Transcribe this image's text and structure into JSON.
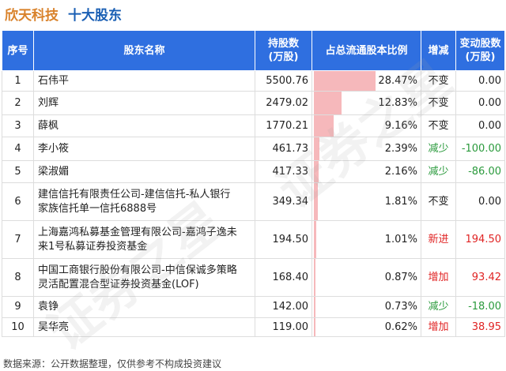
{
  "title": {
    "company": "欣天科技",
    "section": "十大股东"
  },
  "headers": {
    "index": "序号",
    "name": "股东名称",
    "amount_line1": "持股数",
    "amount_line2": "(万股)",
    "ratio": "占总流通股本比例",
    "change": "增减",
    "delta_line1": "变动股数",
    "delta_line2": "(万股)"
  },
  "rows": [
    {
      "index": "1",
      "name_lines": [
        "石伟平"
      ],
      "amount": "5500.76",
      "ratio": "28.47%",
      "ratio_value": 28.47,
      "change": "不变",
      "change_type": "flat",
      "delta": "0.00",
      "delta_type": "zero"
    },
    {
      "index": "2",
      "name_lines": [
        "刘辉"
      ],
      "amount": "2479.02",
      "ratio": "12.83%",
      "ratio_value": 12.83,
      "change": "不变",
      "change_type": "flat",
      "delta": "0.00",
      "delta_type": "zero"
    },
    {
      "index": "3",
      "name_lines": [
        "薛枫"
      ],
      "amount": "1770.21",
      "ratio": "9.16%",
      "ratio_value": 9.16,
      "change": "不变",
      "change_type": "flat",
      "delta": "0.00",
      "delta_type": "zero"
    },
    {
      "index": "4",
      "name_lines": [
        "李小筱"
      ],
      "amount": "461.73",
      "ratio": "2.39%",
      "ratio_value": 2.39,
      "change": "减少",
      "change_type": "decrease",
      "delta": "-100.00",
      "delta_type": "neg"
    },
    {
      "index": "5",
      "name_lines": [
        "梁淑媚"
      ],
      "amount": "417.33",
      "ratio": "2.16%",
      "ratio_value": 2.16,
      "change": "减少",
      "change_type": "decrease",
      "delta": "-86.00",
      "delta_type": "neg"
    },
    {
      "index": "6",
      "name_lines": [
        "建信信托有限责任公司-建信信托-私人银行",
        "家族信托单一信托6888号"
      ],
      "amount": "349.34",
      "ratio": "1.81%",
      "ratio_value": 1.81,
      "change": "不变",
      "change_type": "flat",
      "delta": "0.00",
      "delta_type": "zero"
    },
    {
      "index": "7",
      "name_lines": [
        "上海嘉鸿私募基金管理有限公司-嘉鸿子逸未",
        "来1号私募证券投资基金"
      ],
      "amount": "194.50",
      "ratio": "1.01%",
      "ratio_value": 1.01,
      "change": "新进",
      "change_type": "new",
      "delta": "194.50",
      "delta_type": "pos"
    },
    {
      "index": "8",
      "name_lines": [
        "中国工商银行股份有限公司-中信保诚多策略",
        "灵活配置混合型证券投资基金(LOF)"
      ],
      "amount": "168.40",
      "ratio": "0.87%",
      "ratio_value": 0.87,
      "change": "增加",
      "change_type": "increase",
      "delta": "93.42",
      "delta_type": "pos"
    },
    {
      "index": "9",
      "name_lines": [
        "袁铮"
      ],
      "amount": "142.00",
      "ratio": "0.73%",
      "ratio_value": 0.73,
      "change": "减少",
      "change_type": "decrease",
      "delta": "-18.00",
      "delta_type": "neg"
    },
    {
      "index": "10",
      "name_lines": [
        "吴华亮"
      ],
      "amount": "119.00",
      "ratio": "0.62%",
      "ratio_value": 0.62,
      "change": "增加",
      "change_type": "increase",
      "delta": "38.95",
      "delta_type": "pos"
    }
  ],
  "footer": "数据来源：公开数据整理，仅供参考不构成投资建议",
  "colors": {
    "header_bg": "#2f6fe0",
    "company_title": "#d9822b",
    "section_title": "#1a5fb4",
    "bar": "#f6b8bb",
    "increase": "#e02424",
    "decrease": "#2a9a3c"
  }
}
